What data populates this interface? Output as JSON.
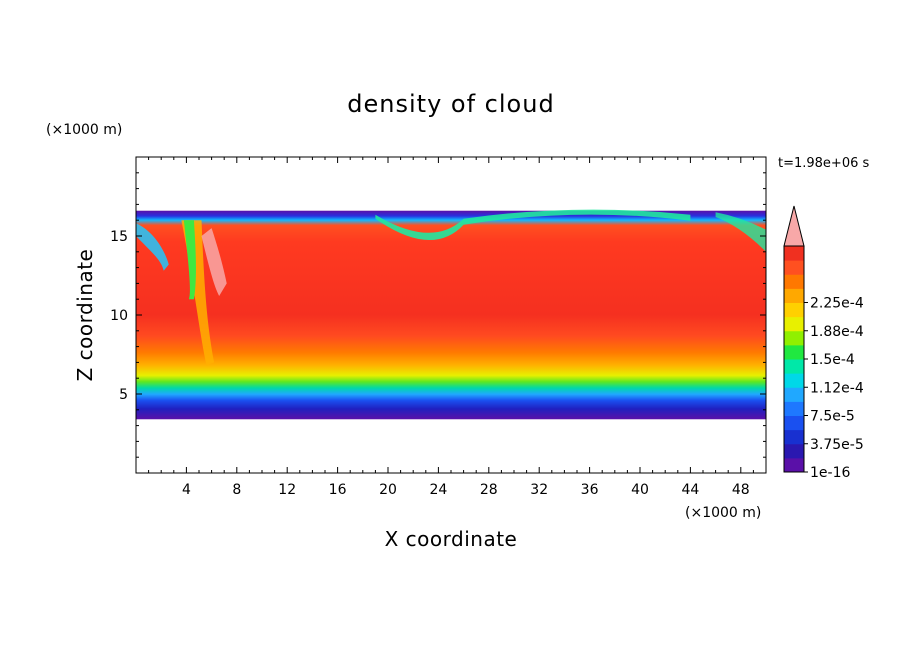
{
  "chart_data": {
    "type": "heatmap",
    "title": "density of cloud",
    "xlabel": "X coordinate",
    "ylabel": "Z coordinate",
    "x_unit": "(×1000 m)",
    "y_unit": "(×1000 m)",
    "time_label": "t=1.98e+06 s",
    "xlim": [
      0,
      50
    ],
    "ylim": [
      0,
      20
    ],
    "x_ticks": [
      4,
      8,
      12,
      16,
      20,
      24,
      28,
      32,
      36,
      40,
      44,
      48
    ],
    "y_ticks": [
      5,
      10,
      15
    ],
    "cloud_layer": {
      "base_km": 3.4,
      "top_km": 16.6
    },
    "colorbar": {
      "labels": [
        "2.25e-4",
        "1.88e-4",
        "1.5e-4",
        "1.12e-4",
        "7.5e-5",
        "3.75e-5",
        "1e-16"
      ],
      "label_values": [
        0.000225,
        0.000188,
        0.00015,
        0.000112,
        7.5e-05,
        3.75e-05,
        1e-16
      ],
      "colors": [
        "#5a10a8",
        "#2a18b0",
        "#1830d0",
        "#1a50f0",
        "#1e78ff",
        "#20a8ff",
        "#00d8e8",
        "#00e8a8",
        "#20e840",
        "#90f000",
        "#e8f000",
        "#ffd000",
        "#ffa800",
        "#ff7800",
        "#ff5020",
        "#f03020",
        "#f8a8a8"
      ],
      "extend": "max"
    }
  }
}
